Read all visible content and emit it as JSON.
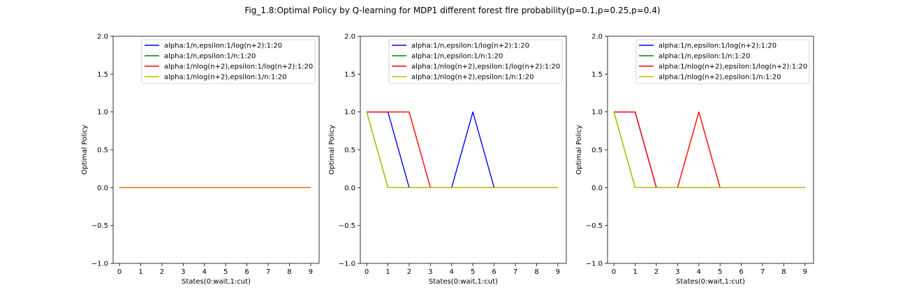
{
  "figure": {
    "suptitle": "Fig_1.8:Optimal Policy by Q-learning for MDP1 different forest fire probability(p=0.1,p=0.25,p=0.4)"
  },
  "colors": {
    "blue": "#0000ff",
    "green": "#008000",
    "red": "#ff0000",
    "yellow": "#bfbf00",
    "orange_overlap": "#d08000"
  },
  "chart_data": [
    {
      "type": "line",
      "title": "",
      "xlabel": "States(0:wait,1:cut)",
      "ylabel": "Optimal Policy",
      "xlim": [
        -0.3,
        9.4
      ],
      "ylim": [
        -1.0,
        2.0
      ],
      "xticks": [
        "0",
        "1",
        "2",
        "3",
        "4",
        "5",
        "6",
        "7",
        "8",
        "9"
      ],
      "yticks": [
        "−1.0",
        "−0.5",
        "0.0",
        "0.5",
        "1.0",
        "1.5",
        "2.0"
      ],
      "legend_position": "upper-right",
      "x": [
        0,
        1,
        2,
        3,
        4,
        5,
        6,
        7,
        8,
        9
      ],
      "series": [
        {
          "name": "alpha:1/n,epsilon:1/log(n+2):1:20",
          "color": "#0000ff",
          "values": [
            0,
            0,
            0,
            0,
            0,
            0,
            0,
            0,
            0,
            0
          ]
        },
        {
          "name": "alpha:1/n,epsilon:1/n:1:20",
          "color": "#008000",
          "values": [
            0,
            0,
            0,
            0,
            0,
            0,
            0,
            0,
            0,
            0
          ]
        },
        {
          "name": "alpha:1/nlog(n+2),epsilon:1/log(n+2):1:20",
          "color": "#ff0000",
          "values": [
            0,
            0,
            0,
            0,
            0,
            0,
            0,
            0,
            0,
            0
          ]
        },
        {
          "name": "alpha:1/nlog(n+2),epsilon:1/n:1:20",
          "color": "#d08000",
          "values": [
            0,
            0,
            0,
            0,
            0,
            0,
            0,
            0,
            0,
            0
          ]
        }
      ]
    },
    {
      "type": "line",
      "title": "",
      "xlabel": "States(0:wait,1:cut)",
      "ylabel": "Optimal Policy",
      "xlim": [
        -0.3,
        9.4
      ],
      "ylim": [
        -1.0,
        2.0
      ],
      "xticks": [
        "0",
        "1",
        "2",
        "3",
        "4",
        "5",
        "6",
        "7",
        "8",
        "9"
      ],
      "yticks": [
        "−1.0",
        "−0.5",
        "0.0",
        "0.5",
        "1.0",
        "1.5",
        "2.0"
      ],
      "legend_position": "upper-right",
      "x": [
        0,
        1,
        2,
        3,
        4,
        5,
        6,
        7,
        8,
        9
      ],
      "series": [
        {
          "name": "alpha:1/n,epsilon:1/log(n+2):1:20",
          "color": "#0000ff",
          "values": [
            1,
            1,
            0,
            0,
            0,
            1,
            0,
            0,
            0,
            0
          ]
        },
        {
          "name": "alpha:1/n,epsilon:1/n:1:20",
          "color": "#008000",
          "values": [
            1,
            0,
            0,
            0,
            0,
            0,
            0,
            0,
            0,
            0
          ]
        },
        {
          "name": "alpha:1/nlog(n+2),epsilon:1/log(n+2):1:20",
          "color": "#ff0000",
          "values": [
            1,
            1,
            1,
            0,
            0,
            0,
            0,
            0,
            0,
            0
          ]
        },
        {
          "name": "alpha:1/nlog(n+2),epsilon:1/n:1:20",
          "color": "#bfbf00",
          "values": [
            1,
            0,
            0,
            0,
            0,
            0,
            0,
            0,
            0,
            0
          ]
        }
      ]
    },
    {
      "type": "line",
      "title": "",
      "xlabel": "States(0:wait,1:cut)",
      "ylabel": "Optimal Policy",
      "xlim": [
        -0.3,
        9.4
      ],
      "ylim": [
        -1.0,
        2.0
      ],
      "xticks": [
        "0",
        "1",
        "2",
        "3",
        "4",
        "5",
        "6",
        "7",
        "8",
        "9"
      ],
      "yticks": [
        "−1.0",
        "−0.5",
        "0.0",
        "0.5",
        "1.0",
        "1.5",
        "2.0"
      ],
      "legend_position": "upper-right",
      "x": [
        0,
        1,
        2,
        3,
        4,
        5,
        6,
        7,
        8,
        9
      ],
      "series": [
        {
          "name": "alpha:1/n,epsilon:1/log(n+2):1:20",
          "color": "#0000ff",
          "values": [
            1,
            1,
            0,
            0,
            0,
            0,
            0,
            0,
            0,
            0
          ]
        },
        {
          "name": "alpha:1/n,epsilon:1/n:1:20",
          "color": "#008000",
          "values": [
            1,
            0,
            0,
            0,
            0,
            0,
            0,
            0,
            0,
            0
          ]
        },
        {
          "name": "alpha:1/nlog(n+2),epsilon:1/log(n+2):1:20",
          "color": "#ff0000",
          "values": [
            1,
            1,
            0,
            0,
            1,
            0,
            0,
            0,
            0,
            0
          ]
        },
        {
          "name": "alpha:1/nlog(n+2),epsilon:1/n:1:20",
          "color": "#bfbf00",
          "values": [
            1,
            0,
            0,
            0,
            0,
            0,
            0,
            0,
            0,
            0
          ]
        }
      ]
    }
  ]
}
